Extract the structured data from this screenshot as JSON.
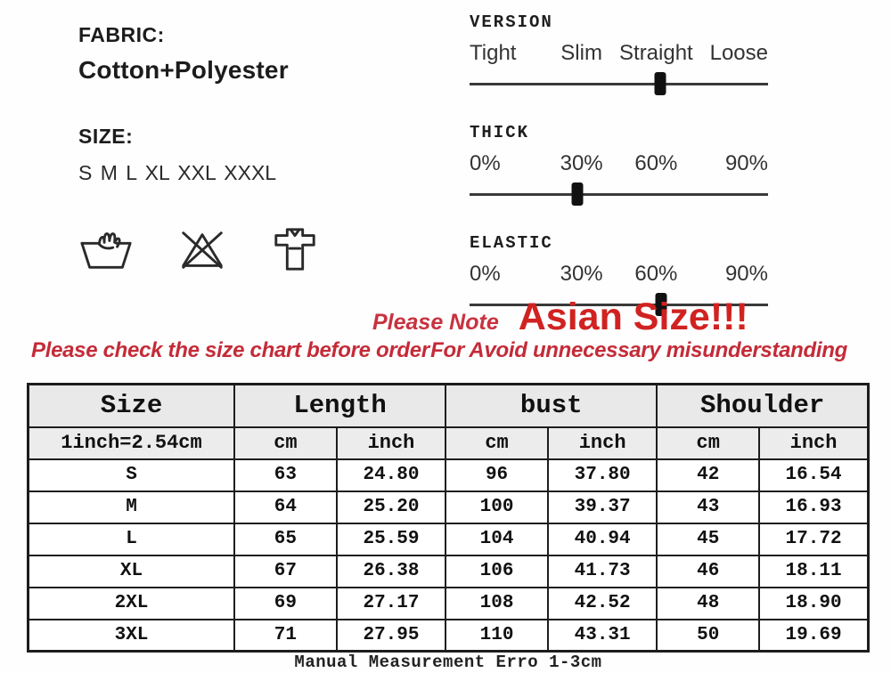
{
  "fabric": {
    "label": "FABRIC:",
    "value": "Cotton+Polyester"
  },
  "size": {
    "label": "SIZE:",
    "value": "S M L XL XXL XXXL"
  },
  "care_icons": [
    {
      "name": "hand-wash-icon"
    },
    {
      "name": "do-not-bleach-icon"
    },
    {
      "name": "shirt-icon"
    }
  ],
  "sliders": [
    {
      "label": "VERSION",
      "options": [
        "Tight",
        "Slim",
        "Straight",
        "Loose"
      ],
      "position_pct": 63.8
    },
    {
      "label": "THICK",
      "options": [
        "0%",
        "30%",
        "60%",
        "90%"
      ],
      "position_pct": 36.1
    },
    {
      "label": "ELASTIC",
      "options": [
        "0%",
        "30%",
        "60%",
        "90%"
      ],
      "position_pct": 64.2
    }
  ],
  "notes": {
    "please_note": "Please Note",
    "asian_size": "Asian Size!!!",
    "check_left": "Please check the size chart before order",
    "check_right": "For Avoid unnecessary misunderstanding"
  },
  "colors": {
    "note_red": "#c8323f",
    "asian_red": "#d02321",
    "warn_red": "#c42b38"
  },
  "chart_data": {
    "type": "table",
    "title": "Size chart (Asian Size)",
    "group_headers": [
      "Size",
      "Length",
      "bust",
      "Shoulder"
    ],
    "sub_headers": [
      "1inch=2.54cm",
      "cm",
      "inch",
      "cm",
      "inch",
      "cm",
      "inch"
    ],
    "rows": [
      [
        "S",
        "63",
        "24.80",
        "96",
        "37.80",
        "42",
        "16.54"
      ],
      [
        "M",
        "64",
        "25.20",
        "100",
        "39.37",
        "43",
        "16.93"
      ],
      [
        "L",
        "65",
        "25.59",
        "104",
        "40.94",
        "45",
        "17.72"
      ],
      [
        "XL",
        "67",
        "26.38",
        "106",
        "41.73",
        "46",
        "18.11"
      ],
      [
        "2XL",
        "69",
        "27.17",
        "108",
        "42.52",
        "48",
        "18.90"
      ],
      [
        "3XL",
        "71",
        "27.95",
        "110",
        "43.31",
        "50",
        "19.69"
      ]
    ],
    "footer": "Manual Measurement Erro 1-3cm"
  },
  "table": {
    "header_size": "Size",
    "header_length": "Length",
    "header_bust": "bust",
    "header_shoulder": "Shoulder",
    "sub": [
      "1inch=2.54cm",
      "cm",
      "inch",
      "cm",
      "inch",
      "cm",
      "inch"
    ],
    "rows": [
      {
        "size": "S",
        "cells": [
          "63",
          "24.80",
          "96",
          "37.80",
          "42",
          "16.54"
        ]
      },
      {
        "size": "M",
        "cells": [
          "64",
          "25.20",
          "100",
          "39.37",
          "43",
          "16.93"
        ]
      },
      {
        "size": "L",
        "cells": [
          "65",
          "25.59",
          "104",
          "40.94",
          "45",
          "17.72"
        ]
      },
      {
        "size": "XL",
        "cells": [
          "67",
          "26.38",
          "106",
          "41.73",
          "46",
          "18.11"
        ]
      },
      {
        "size": "2XL",
        "cells": [
          "69",
          "27.17",
          "108",
          "42.52",
          "48",
          "18.90"
        ]
      },
      {
        "size": "3XL",
        "cells": [
          "71",
          "27.95",
          "110",
          "43.31",
          "50",
          "19.69"
        ]
      }
    ],
    "footer": "Manual Measurement Erro 1-3cm"
  }
}
